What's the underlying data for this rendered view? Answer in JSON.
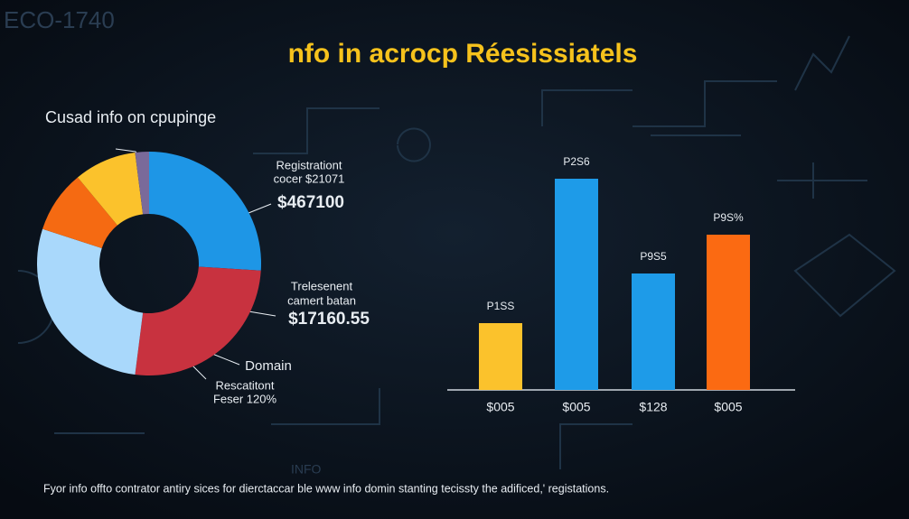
{
  "watermark": "ECO-1740",
  "watermark_2": "INFO",
  "title": "nfo in acrocp Réesissiatels",
  "footer": "Fyor info offto contrator antiry sices for dierctaccar ble www info domin stanting tecissty the adificed,' registations.",
  "chart_data": [
    {
      "type": "pie",
      "title": "Cusad info on cpupinge",
      "values": [
        26,
        26,
        28,
        9,
        9,
        2
      ],
      "colors": [
        "#1e96e6",
        "#c8323f",
        "#a9d8fb",
        "#f56a12",
        "#fbc22c",
        "#7a6a9a"
      ],
      "annotations": [
        "Registrationt",
        "cocer $21071",
        "$467100",
        "Trelesenent",
        "camert batan",
        "$17160.55",
        "Domain",
        "Rescatitont",
        "Feser 120%"
      ]
    },
    {
      "type": "bar",
      "categories": [
        "$005",
        "$005",
        "$128",
        "$005"
      ],
      "values": [
        74,
        234,
        129,
        172
      ],
      "value_labels": [
        "P1SS",
        "P2S6",
        "P9S5",
        "P9S%"
      ],
      "colors": [
        "#fbc22c",
        "#1e9be8",
        "#1e9be8",
        "#fb6a12"
      ],
      "ylim": [
        0,
        260
      ]
    }
  ]
}
